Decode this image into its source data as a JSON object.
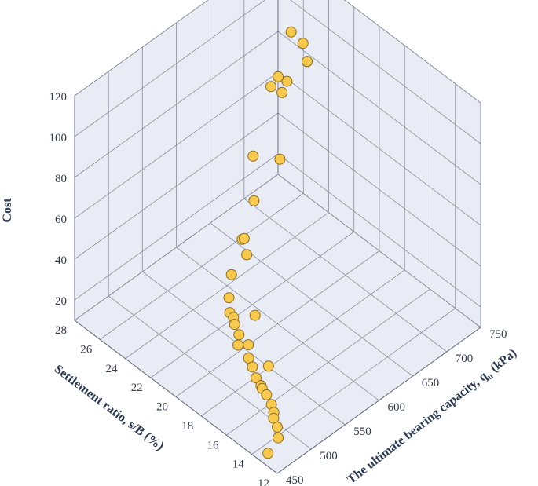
{
  "chart_data": {
    "type": "scatter3d",
    "title": "",
    "xlabel": "Settlement ratio, s/B (%)",
    "ylabel_main": "The ultimate bearing capacity, q",
    "ylabel_sub": "u",
    "ylabel_unit": " (kPa)",
    "zlabel": "Cost",
    "xticks": [
      "12",
      "14",
      "16",
      "18",
      "20",
      "22",
      "24",
      "26",
      "28"
    ],
    "yticks": [
      "450",
      "500",
      "550",
      "600",
      "650",
      "700",
      "750"
    ],
    "zticks": [
      "20",
      "40",
      "60",
      "80",
      "100",
      "120"
    ],
    "xlim": [
      12,
      28
    ],
    "ylim": [
      450,
      750
    ],
    "zlim": [
      10,
      120
    ],
    "grid": true,
    "colors": {
      "pane": "#e9ecf4",
      "marker_fill": "#f9c94e",
      "marker_edge": "#8a6d1e",
      "grid": "#8a8f9c",
      "text": "#2b3a55"
    },
    "points": [
      {
        "x": 13.0,
        "y": 470,
        "z": 18
      },
      {
        "x": 13.0,
        "y": 455,
        "z": 14
      },
      {
        "x": 13.5,
        "y": 478,
        "z": 19
      },
      {
        "x": 14.0,
        "y": 482,
        "z": 20
      },
      {
        "x": 14.2,
        "y": 486,
        "z": 21
      },
      {
        "x": 14.6,
        "y": 490,
        "z": 22
      },
      {
        "x": 15.2,
        "y": 494,
        "z": 23
      },
      {
        "x": 15.6,
        "y": 495,
        "z": 24
      },
      {
        "x": 15.8,
        "y": 497,
        "z": 24
      },
      {
        "x": 16.3,
        "y": 499,
        "z": 25
      },
      {
        "x": 15.9,
        "y": 510,
        "z": 30
      },
      {
        "x": 16.8,
        "y": 503,
        "z": 27
      },
      {
        "x": 17.2,
        "y": 505,
        "z": 29
      },
      {
        "x": 17.6,
        "y": 512,
        "z": 32
      },
      {
        "x": 17.5,
        "y": 520,
        "z": 45
      },
      {
        "x": 18.2,
        "y": 508,
        "z": 30
      },
      {
        "x": 18.5,
        "y": 515,
        "z": 32
      },
      {
        "x": 19.0,
        "y": 518,
        "z": 34
      },
      {
        "x": 19.2,
        "y": 520,
        "z": 36
      },
      {
        "x": 19.6,
        "y": 522,
        "z": 36
      },
      {
        "x": 20.1,
        "y": 530,
        "z": 39
      },
      {
        "x": 20.7,
        "y": 545,
        "z": 44
      },
      {
        "x": 20.3,
        "y": 560,
        "z": 52
      },
      {
        "x": 20.5,
        "y": 560,
        "z": 59
      },
      {
        "x": 21.3,
        "y": 572,
        "z": 52
      },
      {
        "x": 21.6,
        "y": 595,
        "z": 64
      },
      {
        "x": 21.4,
        "y": 590,
        "z": 88
      },
      {
        "x": 21.6,
        "y": 620,
        "z": 114
      },
      {
        "x": 21.3,
        "y": 625,
        "z": 119
      },
      {
        "x": 22.5,
        "y": 650,
        "z": 67
      },
      {
        "x": 22.6,
        "y": 655,
        "z": 98
      },
      {
        "x": 22.9,
        "y": 668,
        "z": 99
      },
      {
        "x": 24.0,
        "y": 712,
        "z": 102
      },
      {
        "x": 24.4,
        "y": 702,
        "z": 108
      },
      {
        "x": 25.6,
        "y": 748,
        "z": 77
      },
      {
        "x": 25.6,
        "y": 748,
        "z": 77
      }
    ]
  }
}
